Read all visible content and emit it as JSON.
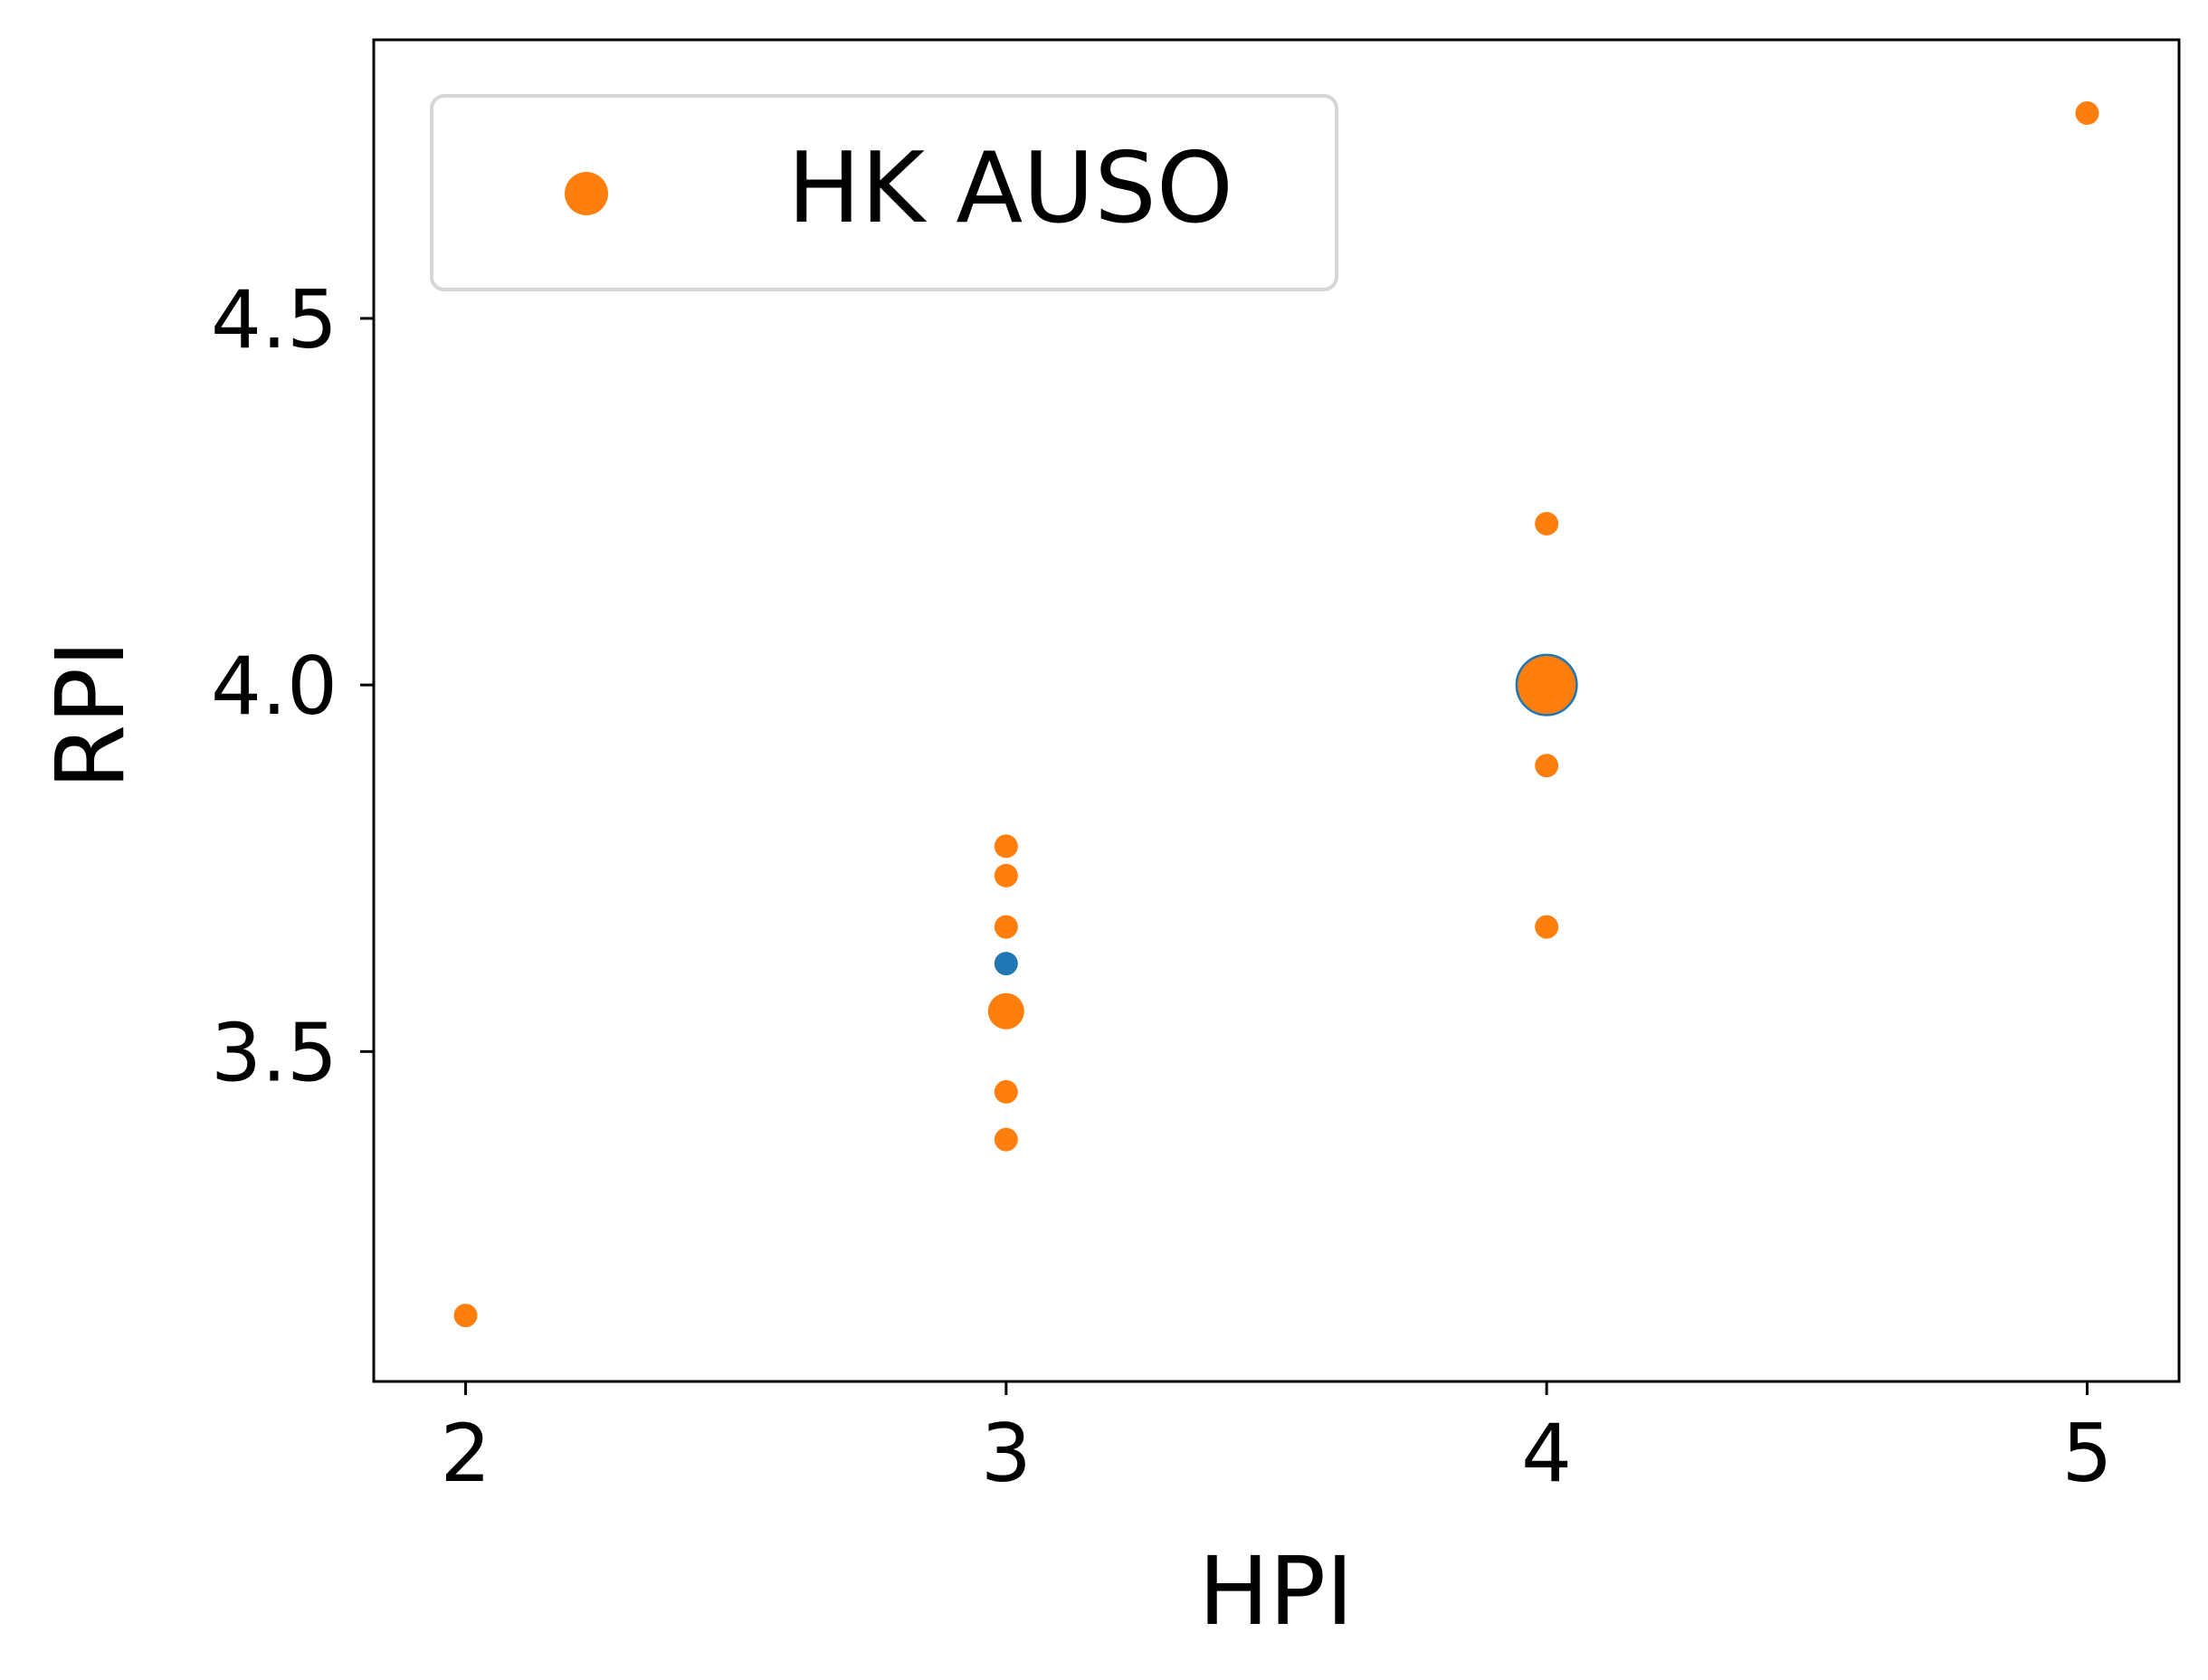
{
  "chart_data": {
    "type": "scatter",
    "title": "",
    "xlabel": "HPI",
    "ylabel": "RPI",
    "xlim": [
      1.83,
      5.17
    ],
    "ylim": [
      3.05,
      4.88
    ],
    "xticks": [
      2,
      3,
      4,
      5
    ],
    "yticks": [
      3.5,
      4.0,
      4.5
    ],
    "xtick_labels": [
      "2",
      "3",
      "4",
      "5"
    ],
    "ytick_labels": [
      "3.5",
      "4.0",
      "4.5"
    ],
    "grid": false,
    "legend": {
      "placement": "top-left",
      "entries": [
        {
          "label": "HK AUSO",
          "color": "#ff7f0e"
        }
      ]
    },
    "series": [
      {
        "name": "",
        "color": "#1f77b4",
        "points": [
          {
            "x": 3,
            "y": 3.62,
            "size": "small"
          },
          {
            "x": 4,
            "y": 4.0,
            "size": "large",
            "style": "outline"
          }
        ]
      },
      {
        "name": "HK AUSO",
        "color": "#ff7f0e",
        "points": [
          {
            "x": 2,
            "y": 3.14,
            "size": "small"
          },
          {
            "x": 3,
            "y": 3.78,
            "size": "small"
          },
          {
            "x": 3,
            "y": 3.74,
            "size": "small"
          },
          {
            "x": 3,
            "y": 3.67,
            "size": "small"
          },
          {
            "x": 3,
            "y": 3.555,
            "size": "medium"
          },
          {
            "x": 3,
            "y": 3.445,
            "size": "small"
          },
          {
            "x": 3,
            "y": 3.38,
            "size": "small"
          },
          {
            "x": 4,
            "y": 4.22,
            "size": "small"
          },
          {
            "x": 4,
            "y": 4.0,
            "size": "large"
          },
          {
            "x": 4,
            "y": 3.89,
            "size": "small"
          },
          {
            "x": 4,
            "y": 3.67,
            "size": "small"
          },
          {
            "x": 5,
            "y": 4.78,
            "size": "small"
          }
        ]
      }
    ]
  }
}
